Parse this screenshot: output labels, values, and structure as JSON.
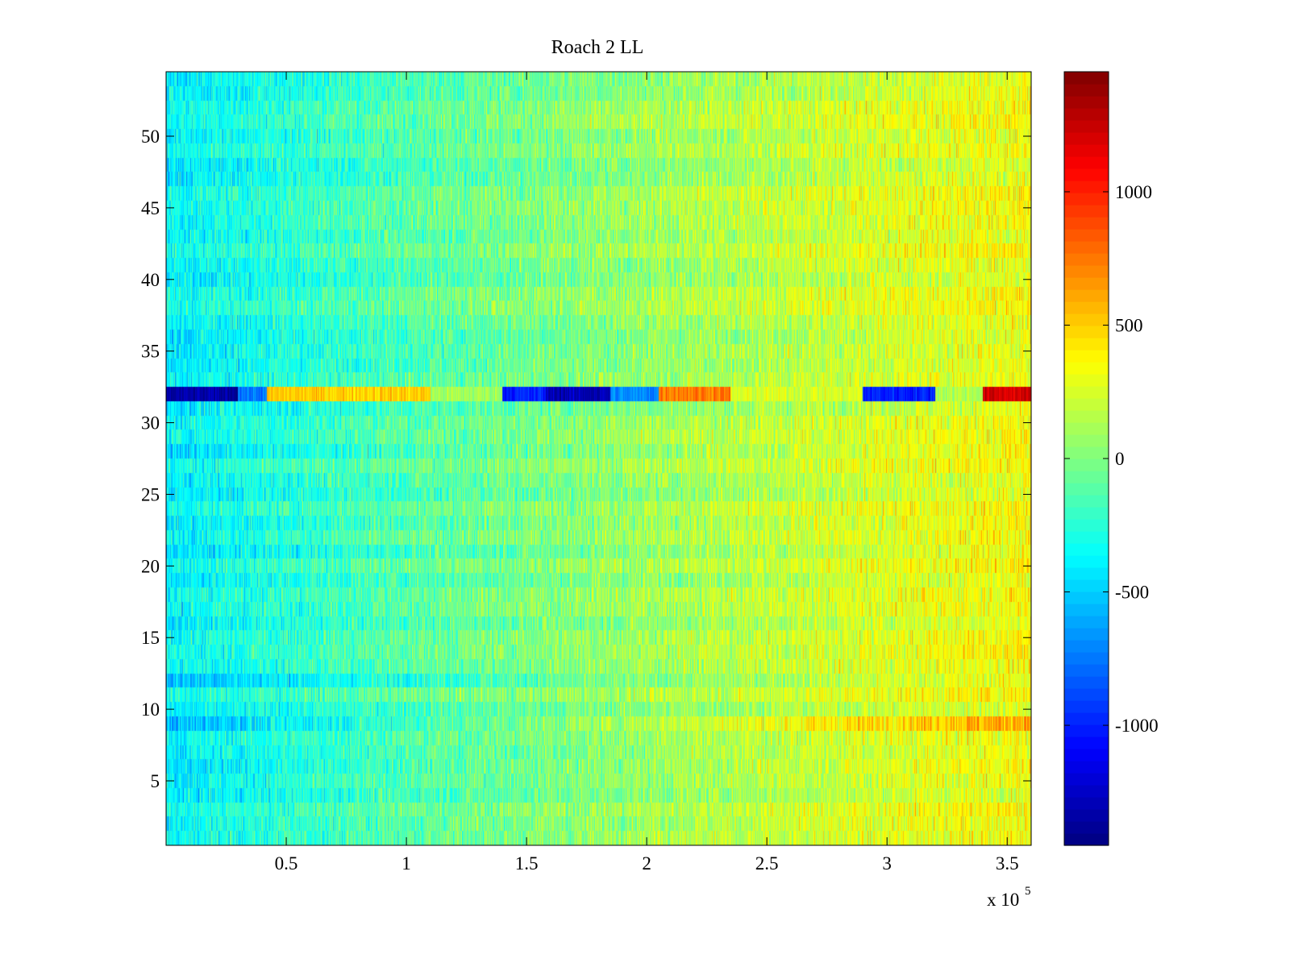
{
  "chart_data": {
    "type": "heatmap",
    "title": "Roach 2 LL",
    "xlabel": "",
    "ylabel": "",
    "x_multiplier_label": "x 10",
    "x_multiplier_exponent": "5",
    "xlim": [
      0,
      3.6
    ],
    "ylim": [
      0.5,
      54.5
    ],
    "x_ticks": [
      0.5,
      1,
      1.5,
      2,
      2.5,
      3,
      3.5
    ],
    "x_tick_labels": [
      "0.5",
      "1",
      "1.5",
      "2",
      "2.5",
      "3",
      "3.5"
    ],
    "y_ticks": [
      5,
      10,
      15,
      20,
      25,
      30,
      35,
      40,
      45,
      50
    ],
    "y_tick_labels": [
      "5",
      "10",
      "15",
      "20",
      "25",
      "30",
      "35",
      "40",
      "45",
      "50"
    ],
    "rows": 54,
    "colormap": "jet",
    "clim": [
      -1450,
      1450
    ],
    "colorbar": {
      "ticks": [
        -1000,
        -500,
        0,
        500,
        1000
      ],
      "tick_labels": [
        "-1000",
        "-500",
        "0",
        "500",
        "1000"
      ]
    },
    "trend": {
      "x": [
        0,
        1,
        2,
        3,
        3.6
      ],
      "value": [
        -380,
        -120,
        80,
        260,
        340
      ]
    },
    "row_offsets": [
      {
        "row": 9,
        "value": -250,
        "right_value": 250
      },
      {
        "row": 12,
        "value": -150
      },
      {
        "row": 6,
        "value": -100
      },
      {
        "row": 28,
        "value": -120
      },
      {
        "row": 23,
        "value": -80
      },
      {
        "row": 21,
        "value": -80
      }
    ],
    "anomaly_row": {
      "row": 32,
      "segments": [
        {
          "x": [
            0,
            0.3
          ],
          "value": -1350
        },
        {
          "x": [
            0.3,
            0.42
          ],
          "value": -750
        },
        {
          "x": [
            0.42,
            1.1
          ],
          "value": 500
        },
        {
          "x": [
            1.1,
            1.4
          ],
          "value": 100
        },
        {
          "x": [
            1.4,
            1.58
          ],
          "value": -1000
        },
        {
          "x": [
            1.58,
            1.85
          ],
          "value": -1300
        },
        {
          "x": [
            1.85,
            2.05
          ],
          "value": -700
        },
        {
          "x": [
            2.05,
            2.35
          ],
          "value": 750
        },
        {
          "x": [
            2.35,
            2.9
          ],
          "value": 250
        },
        {
          "x": [
            2.9,
            3.2
          ],
          "value": -1000
        },
        {
          "x": [
            3.2,
            3.4
          ],
          "value": 150
        },
        {
          "x": [
            3.4,
            3.6
          ],
          "value": 1200
        }
      ]
    }
  }
}
